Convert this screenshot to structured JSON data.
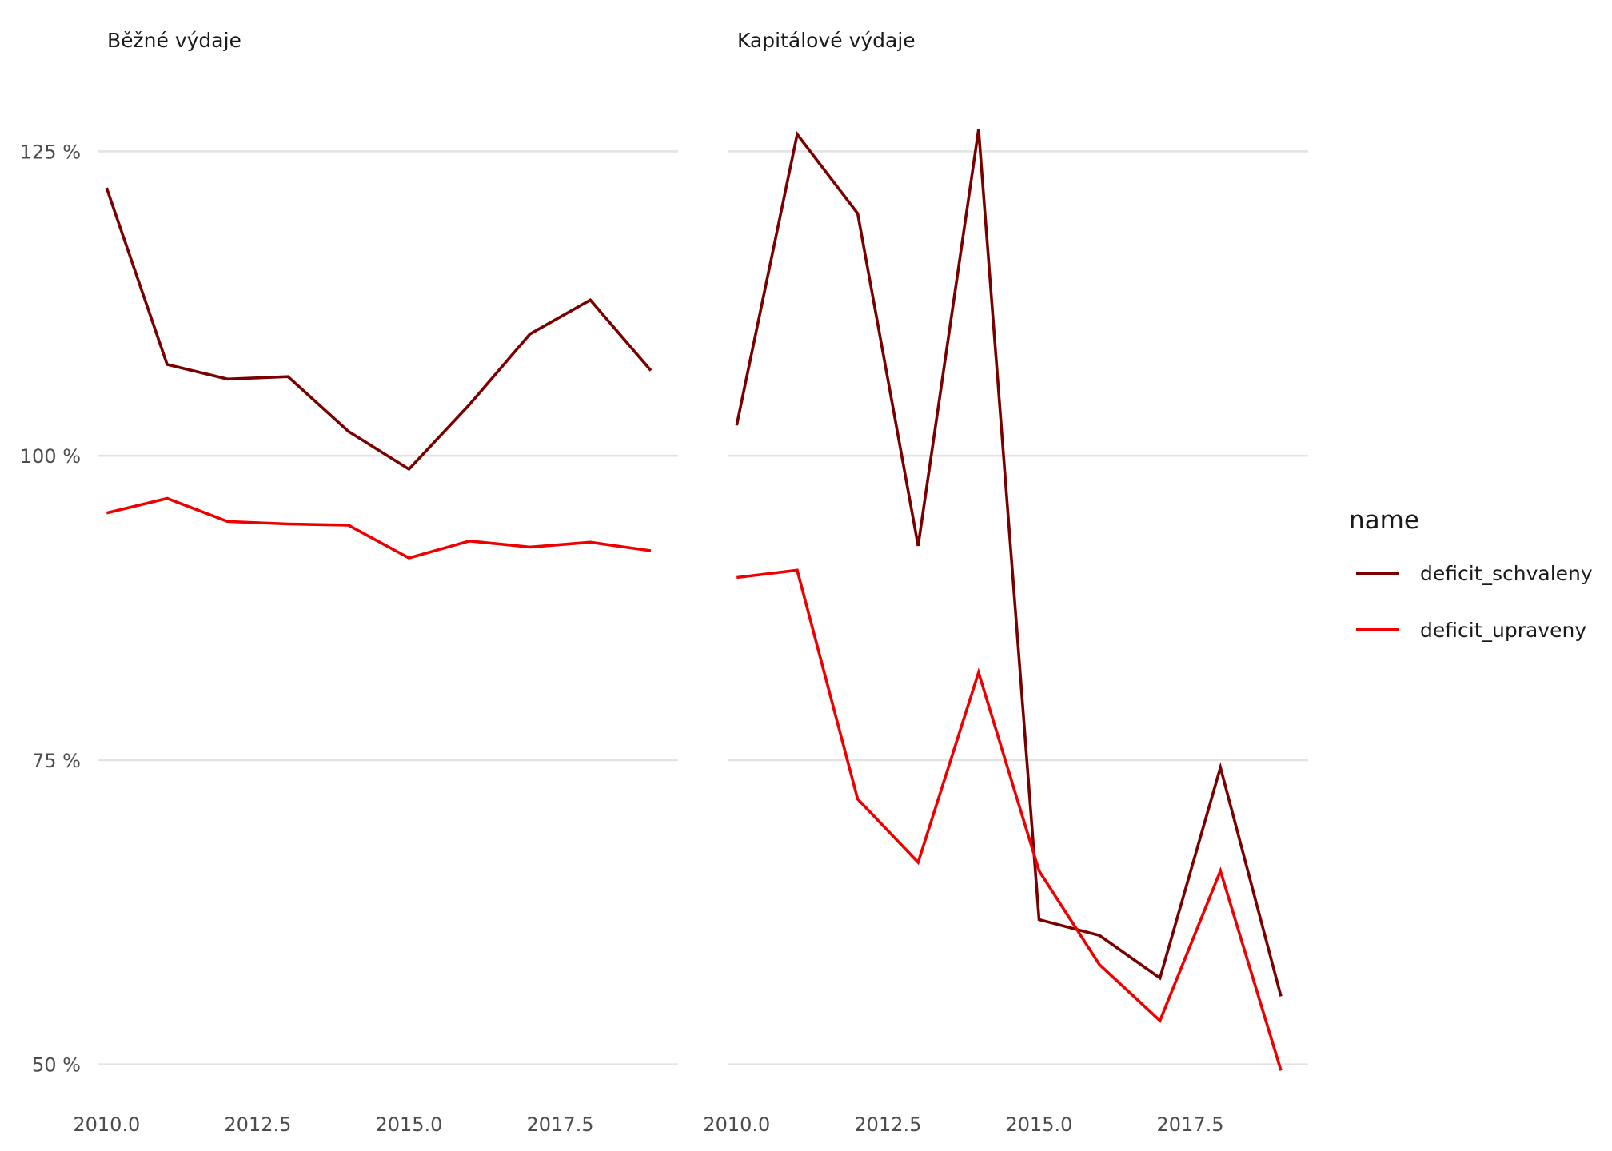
{
  "chart_data": {
    "type": "line",
    "facets": [
      {
        "title": "Běžné výdaje",
        "x": [
          2010,
          2011,
          2012,
          2013,
          2014,
          2015,
          2016,
          2017,
          2018,
          2019
        ],
        "series": [
          {
            "name": "deficit_schvaleny",
            "values": [
              122.0,
              107.5,
              106.3,
              106.5,
              102.0,
              98.9,
              104.2,
              110.0,
              112.8,
              107.0
            ]
          },
          {
            "name": "deficit_upraveny",
            "values": [
              95.3,
              96.5,
              94.6,
              94.4,
              94.3,
              91.6,
              93.0,
              92.5,
              92.9,
              92.2
            ]
          }
        ]
      },
      {
        "title": "Kapitálové výdaje",
        "x": [
          2010,
          2011,
          2012,
          2013,
          2014,
          2015,
          2016,
          2017,
          2018,
          2019
        ],
        "series": [
          {
            "name": "deficit_schvaleny",
            "values": [
              102.5,
              126.4,
              119.9,
              92.6,
              126.8,
              61.9,
              60.6,
              57.1,
              74.4,
              55.6
            ]
          },
          {
            "name": "deficit_upraveny",
            "values": [
              90.0,
              90.6,
              71.8,
              66.6,
              82.2,
              65.9,
              58.2,
              53.6,
              65.9,
              49.5
            ]
          }
        ]
      }
    ],
    "xlim": [
      2009.85,
      2019.45
    ],
    "ylim": [
      46.5,
      133.5
    ],
    "x_ticks": [
      2010.0,
      2012.5,
      2015.0,
      2017.5
    ],
    "x_tick_labels": [
      "2010.0",
      "2012.5",
      "2015.0",
      "2017.5"
    ],
    "y_ticks": [
      50,
      75,
      100,
      125
    ],
    "y_tick_labels": [
      "50 %",
      "75 %",
      "100 %",
      "125 %"
    ],
    "grid": "horizontal",
    "legend": {
      "title": "name",
      "position": "right",
      "entries": [
        "deficit_schvaleny",
        "deficit_upraveny"
      ]
    },
    "colors": {
      "deficit_schvaleny": "#7a0000",
      "deficit_upraveny": "#ee0000"
    }
  }
}
